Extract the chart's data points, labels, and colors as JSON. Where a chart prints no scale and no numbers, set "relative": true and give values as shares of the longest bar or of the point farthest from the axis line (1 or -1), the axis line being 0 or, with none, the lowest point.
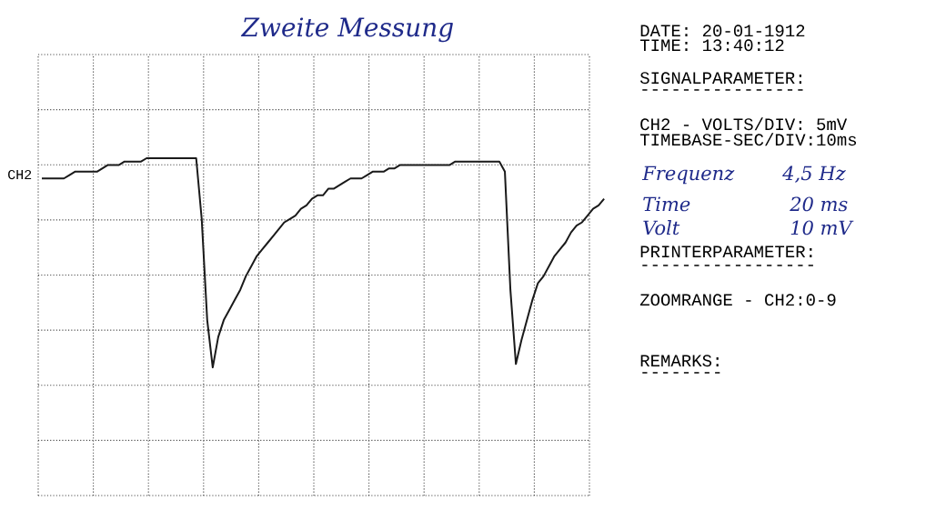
{
  "chart_data": {
    "type": "line",
    "relative": true,
    "grid": true,
    "line_style": "solid",
    "marker": "none",
    "title": "Zweite Messung",
    "annotations": [
      "CH2",
      "DATE: 20-01-1912",
      "TIME: 13:40:12",
      "SIGNALPARAMETER:",
      "----------------",
      "CH2 - VOLTS/DIV: 5mV",
      "TIMEBASE-SEC/DIV:10ms",
      "Frequenz",
      "4,5 Hz",
      "Time",
      "20 ms",
      "Volt",
      "10 mV",
      "PRINTERPARAMETER:",
      "-----------------",
      "ZOOMRANGE - CH2:0-9",
      "REMARKS:",
      "--------"
    ],
    "categories": [
      null,
      null,
      null,
      null,
      null,
      null,
      null,
      null,
      null,
      null,
      null,
      null,
      null,
      null,
      null,
      null,
      null,
      null,
      null,
      null,
      null,
      null,
      null,
      null,
      null,
      null,
      null,
      null,
      null,
      null,
      null,
      null,
      null,
      null,
      null,
      null,
      null,
      null,
      null,
      null,
      null,
      null,
      null,
      null,
      null,
      null,
      null,
      null,
      null,
      null,
      null,
      null,
      null,
      null,
      null,
      null,
      null,
      null,
      null,
      null,
      null,
      null,
      null,
      null,
      null,
      null,
      null,
      null,
      null,
      null,
      null,
      null,
      null,
      null,
      null,
      null,
      null,
      null,
      null,
      null,
      null,
      null,
      null,
      null,
      null,
      null,
      null,
      null,
      null,
      null,
      null,
      null,
      null,
      null,
      null,
      null,
      null,
      null,
      null,
      null,
      null,
      null,
      null
    ],
    "series": [
      {
        "color": "#1a1a1a",
        "values": [
          0.94,
          0.94,
          0.94,
          0.94,
          0.94,
          0.95,
          0.96,
          0.96,
          0.96,
          0.96,
          0.96,
          0.97,
          0.98,
          0.98,
          0.98,
          0.99,
          0.99,
          0.99,
          0.99,
          1,
          1,
          1,
          1,
          1,
          1,
          1,
          1,
          1,
          1,
          0.82,
          0.52,
          0.38,
          0.47,
          0.52,
          0.55,
          0.58,
          0.61,
          0.65,
          0.68,
          0.71,
          0.73,
          0.75,
          0.77,
          0.79,
          0.81,
          0.82,
          0.83,
          0.85,
          0.86,
          0.88,
          0.89,
          0.89,
          0.91,
          0.91,
          0.92,
          0.93,
          0.94,
          0.94,
          0.94,
          0.95,
          0.96,
          0.96,
          0.96,
          0.97,
          0.97,
          0.98,
          0.98,
          0.98,
          0.98,
          0.98,
          0.98,
          0.98,
          0.98,
          0.98,
          0.98,
          0.99,
          0.99,
          0.99,
          0.99,
          0.99,
          0.99,
          0.99,
          0.99,
          0.99,
          0.96,
          0.61,
          0.39,
          0.46,
          0.52,
          0.58,
          0.63,
          0.65,
          0.68,
          0.71,
          0.73,
          0.75,
          0.78,
          0.8,
          0.81,
          0.83,
          0.85,
          0.86,
          0.88
        ]
      }
    ]
  }
}
